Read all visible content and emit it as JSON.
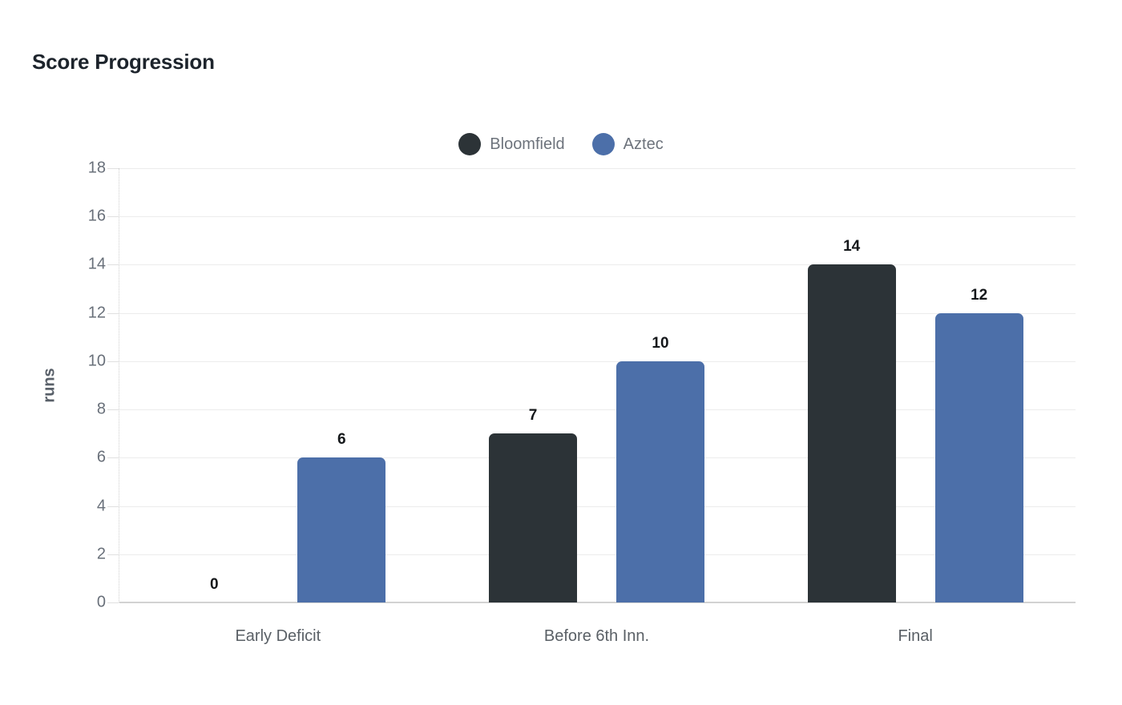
{
  "title": "Score Progression",
  "legend": {
    "items": [
      {
        "label": "Bloomfield",
        "color": "#2c3337"
      },
      {
        "label": "Aztec",
        "color": "#4c6fa9"
      }
    ]
  },
  "colors": {
    "bloomfield_bar": "#2c3337",
    "aztec_bar": "#4c6fa9",
    "gridline": "#ececec",
    "zero_axis_line": "#d2d2d2",
    "title_text": "#1d242c",
    "axis_text": "#69707a",
    "legend_text": "#6d737c",
    "value_label_text": "#14171a"
  },
  "chart_data": {
    "type": "bar",
    "title": "Score Progression",
    "categories": [
      "Early Deficit",
      "Before 6th Inn.",
      "Final"
    ],
    "series": [
      {
        "name": "Bloomfield",
        "color": "#2c3337",
        "values": [
          0,
          7,
          14
        ]
      },
      {
        "name": "Aztec",
        "color": "#4c6fa9",
        "values": [
          6,
          10,
          12
        ]
      }
    ],
    "xlabel": "",
    "ylabel": "runs",
    "ylim": [
      0,
      18
    ],
    "ytick_step": 2,
    "yticks": [
      0,
      2,
      4,
      6,
      8,
      10,
      12,
      14,
      16,
      18
    ],
    "grid": true,
    "legend_position": "top-center",
    "bar_value_labels": true
  }
}
